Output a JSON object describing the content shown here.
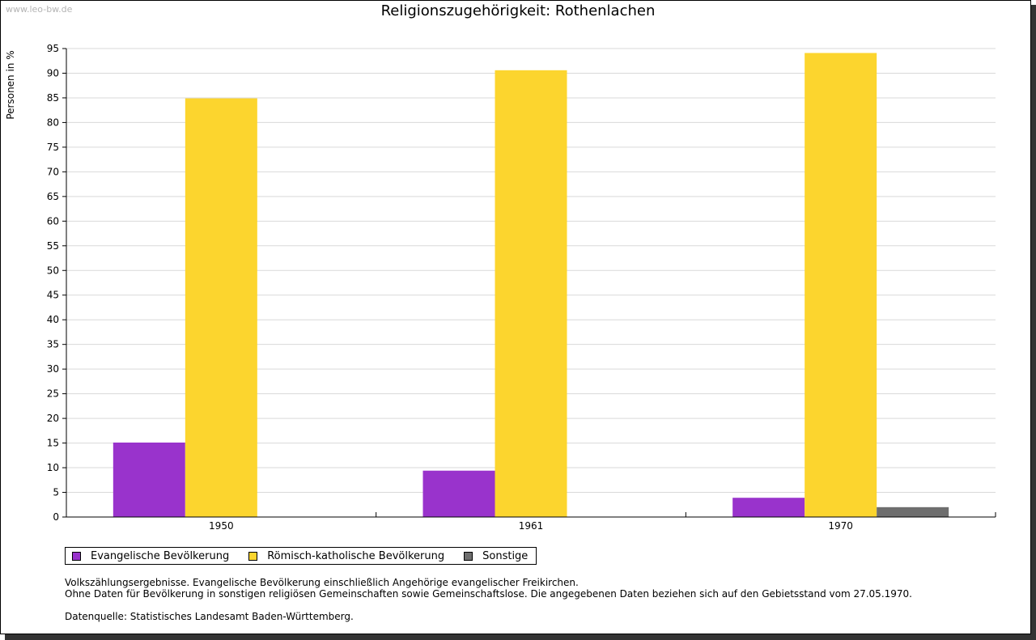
{
  "watermark": "www.leo-bw.de",
  "colors": {
    "evangelisch": "#9933cc",
    "katholisch": "#fcd52e",
    "sonstige": "#6e6e6e",
    "grid": "#d9d9d9"
  },
  "chart_data": {
    "type": "bar",
    "title": "Religionszugehörigkeit: Rothenlachen",
    "xlabel": "",
    "ylabel": "Personen in %",
    "ylim": [
      0,
      95
    ],
    "ytick_step": 5,
    "grid": true,
    "categories": [
      "1950",
      "1961",
      "1970"
    ],
    "series": [
      {
        "name": "Evangelische Bevölkerung",
        "color_key": "evangelisch",
        "values": [
          15.1,
          9.4,
          3.9
        ]
      },
      {
        "name": "Römisch-katholische Bevölkerung",
        "color_key": "katholisch",
        "values": [
          84.9,
          90.6,
          94.1
        ]
      },
      {
        "name": "Sonstige",
        "color_key": "sonstige",
        "values": [
          0,
          0,
          2.0
        ]
      }
    ],
    "legend_position": "bottom-left"
  },
  "notes": {
    "line1": "Volkszählungsergebnisse. Evangelische Bevölkerung einschließlich Angehörige evangelischer Freikirchen.",
    "line2": "Ohne Daten für Bevölkerung in sonstigen religiösen Gemeinschaften sowie Gemeinschaftslose. Die angegebenen Daten beziehen sich auf den Gebietsstand vom 27.05.1970.",
    "source": "Datenquelle: Statistisches Landesamt Baden-Württemberg."
  }
}
